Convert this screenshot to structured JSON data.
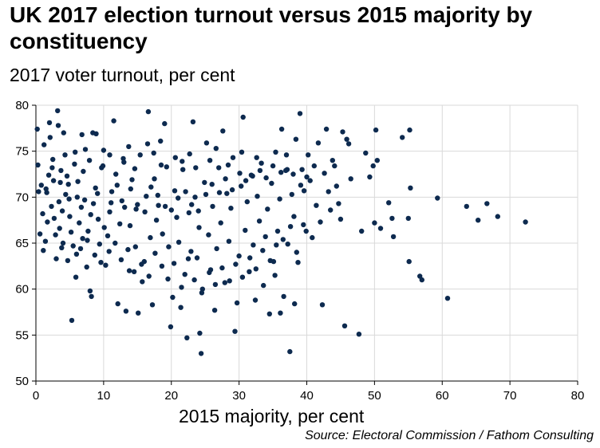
{
  "title": "UK 2017 election turnout versus 2015 majority by constituency",
  "subtitle": "2017 voter turnout, per cent",
  "source": "Source: Electoral Commission / Fathom Consulting",
  "colors": {
    "point": "#0d2a4f",
    "grid": "#d9d9d9",
    "axis": "#000000"
  },
  "chart_data": {
    "type": "scatter",
    "title": "UK 2017 election turnout versus 2015 majority by constituency",
    "xlabel": "2015 majority, per cent",
    "ylabel": "2017 voter turnout, per cent",
    "xlim": [
      0,
      80
    ],
    "ylim": [
      50,
      80
    ],
    "xticks": [
      0,
      10,
      20,
      30,
      40,
      50,
      60,
      70,
      80
    ],
    "yticks": [
      50,
      55,
      60,
      65,
      70,
      75,
      80
    ],
    "grid": true,
    "series": [
      {
        "points": [
          [
            0.2,
            77.4
          ],
          [
            0.3,
            73.5
          ],
          [
            0.8,
            71.3
          ],
          [
            1.2,
            75.7
          ],
          [
            1.0,
            68.2
          ],
          [
            1.6,
            70.5
          ],
          [
            2.1,
            76.5
          ],
          [
            2.3,
            69.0
          ],
          [
            2.7,
            67.7
          ],
          [
            3.0,
            63.3
          ],
          [
            0.6,
            66.0
          ],
          [
            1.4,
            65.2
          ],
          [
            1.9,
            72.4
          ],
          [
            2.5,
            74.1
          ],
          [
            3.3,
            77.8
          ],
          [
            3.2,
            79.4
          ],
          [
            2.0,
            78.1
          ],
          [
            1.1,
            64.2
          ],
          [
            0.4,
            70.6
          ],
          [
            1.7,
            67.3
          ],
          [
            3.6,
            71.6
          ],
          [
            3.9,
            68.5
          ],
          [
            4.3,
            74.6
          ],
          [
            4.1,
            77.0
          ],
          [
            4.6,
            72.3
          ],
          [
            4.9,
            69.8
          ],
          [
            5.2,
            66.2
          ],
          [
            5.5,
            64.7
          ],
          [
            5.3,
            56.6
          ],
          [
            5.9,
            61.3
          ],
          [
            4.0,
            65.0
          ],
          [
            3.5,
            66.6
          ],
          [
            4.8,
            71.4
          ],
          [
            5.7,
            73.6
          ],
          [
            6.1,
            70.0
          ],
          [
            6.4,
            67.2
          ],
          [
            6.7,
            68.9
          ],
          [
            7.0,
            72.8
          ],
          [
            7.3,
            75.2
          ],
          [
            7.7,
            66.3
          ],
          [
            6.0,
            63.8
          ],
          [
            6.9,
            65.5
          ],
          [
            7.5,
            62.4
          ],
          [
            8.0,
            59.8
          ],
          [
            8.2,
            59.2
          ],
          [
            8.5,
            69.3
          ],
          [
            8.8,
            71.0
          ],
          [
            9.2,
            67.6
          ],
          [
            9.4,
            64.9
          ],
          [
            8.4,
            77.0
          ],
          [
            9.7,
            73.2
          ],
          [
            10.0,
            75.1
          ],
          [
            10.3,
            62.6
          ],
          [
            10.6,
            65.8
          ],
          [
            10.9,
            68.4
          ],
          [
            11.2,
            70.6
          ],
          [
            11.5,
            78.3
          ],
          [
            11.8,
            72.5
          ],
          [
            12.1,
            58.4
          ],
          [
            12.4,
            67.1
          ],
          [
            12.7,
            69.6
          ],
          [
            13.0,
            73.8
          ],
          [
            13.3,
            57.6
          ],
          [
            13.6,
            64.3
          ],
          [
            13.9,
            66.9
          ],
          [
            14.2,
            71.9
          ],
          [
            14.5,
            61.9
          ],
          [
            14.8,
            68.7
          ],
          [
            15.1,
            57.4
          ],
          [
            15.4,
            74.6
          ],
          [
            15.7,
            60.8
          ],
          [
            16.0,
            63.0
          ],
          [
            16.3,
            70.1
          ],
          [
            16.6,
            79.3
          ],
          [
            16.9,
            65.6
          ],
          [
            17.2,
            58.3
          ],
          [
            17.5,
            72.0
          ],
          [
            17.8,
            67.5
          ],
          [
            18.1,
            69.1
          ],
          [
            18.4,
            76.1
          ],
          [
            18.7,
            66.0
          ],
          [
            19.0,
            78.0
          ],
          [
            19.3,
            73.3
          ],
          [
            19.6,
            64.6
          ],
          [
            19.9,
            55.9
          ],
          [
            20.2,
            59.1
          ],
          [
            20.5,
            70.7
          ],
          [
            20.8,
            67.8
          ],
          [
            21.1,
            65.1
          ],
          [
            21.4,
            58.0
          ],
          [
            21.7,
            73.0
          ],
          [
            22.0,
            61.6
          ],
          [
            22.3,
            54.7
          ],
          [
            22.6,
            68.3
          ],
          [
            22.9,
            64.1
          ],
          [
            23.2,
            78.2
          ],
          [
            23.5,
            70.0
          ],
          [
            23.8,
            63.4
          ],
          [
            24.1,
            66.7
          ],
          [
            24.4,
            53.0
          ],
          [
            24.2,
            55.2
          ],
          [
            24.6,
            60.0
          ],
          [
            24.9,
            71.6
          ],
          [
            25.2,
            75.9
          ],
          [
            25.5,
            65.9
          ],
          [
            25.8,
            62.1
          ],
          [
            26.1,
            69.0
          ],
          [
            26.4,
            57.7
          ],
          [
            26.7,
            64.4
          ],
          [
            27.0,
            73.2
          ],
          [
            27.3,
            67.2
          ],
          [
            27.6,
            77.2
          ],
          [
            27.9,
            60.7
          ],
          [
            28.2,
            70.4
          ],
          [
            28.5,
            65.2
          ],
          [
            28.8,
            68.8
          ],
          [
            29.1,
            74.3
          ],
          [
            29.4,
            55.4
          ],
          [
            29.7,
            58.5
          ],
          [
            30.0,
            63.6
          ],
          [
            30.3,
            71.2
          ],
          [
            30.6,
            78.7
          ],
          [
            30.9,
            66.4
          ],
          [
            31.2,
            69.5
          ],
          [
            31.5,
            61.9
          ],
          [
            31.8,
            72.4
          ],
          [
            32.1,
            64.8
          ],
          [
            32.4,
            58.8
          ],
          [
            32.7,
            70.1
          ],
          [
            33.0,
            67.4
          ],
          [
            33.3,
            73.7
          ],
          [
            33.6,
            60.4
          ],
          [
            33.9,
            65.7
          ],
          [
            34.2,
            68.7
          ],
          [
            34.5,
            57.3
          ],
          [
            34.8,
            71.5
          ],
          [
            35.1,
            63.0
          ],
          [
            35.4,
            74.9
          ],
          [
            35.7,
            66.3
          ],
          [
            36.0,
            69.8
          ],
          [
            36.3,
            77.4
          ],
          [
            36.6,
            59.2
          ],
          [
            36.9,
            72.9
          ],
          [
            37.2,
            64.9
          ],
          [
            37.5,
            53.2
          ],
          [
            37.8,
            70.3
          ],
          [
            38.1,
            67.9
          ],
          [
            38.4,
            76.3
          ],
          [
            38.7,
            62.9
          ],
          [
            39.0,
            79.1
          ],
          [
            38.2,
            58.4
          ],
          [
            37.0,
            74.6
          ],
          [
            36.1,
            57.4
          ],
          [
            35.3,
            61.5
          ],
          [
            39.3,
            73.0
          ],
          [
            39.6,
            70.7
          ],
          [
            39.9,
            66.3
          ],
          [
            40.2,
            74.6
          ],
          [
            40.5,
            71.8
          ],
          [
            40.8,
            65.6
          ],
          [
            41.1,
            73.4
          ],
          [
            41.4,
            69.1
          ],
          [
            41.7,
            75.9
          ],
          [
            42.0,
            67.3
          ],
          [
            42.3,
            58.3
          ],
          [
            42.6,
            72.6
          ],
          [
            42.9,
            77.4
          ],
          [
            43.2,
            70.6
          ],
          [
            43.5,
            68.6
          ],
          [
            43.8,
            74.0
          ],
          [
            44.1,
            73.4
          ],
          [
            44.4,
            71.2
          ],
          [
            44.7,
            69.3
          ],
          [
            45.0,
            67.6
          ],
          [
            45.3,
            77.1
          ],
          [
            45.6,
            56.0
          ],
          [
            45.9,
            76.3
          ],
          [
            46.2,
            75.8
          ],
          [
            46.5,
            72.0
          ],
          [
            47.7,
            55.1
          ],
          [
            48.1,
            66.3
          ],
          [
            48.7,
            74.8
          ],
          [
            49.3,
            72.2
          ],
          [
            49.8,
            73.4
          ],
          [
            50.2,
            77.3
          ],
          [
            50.4,
            74.0
          ],
          [
            50.0,
            67.2
          ],
          [
            50.9,
            66.6
          ],
          [
            52.1,
            69.4
          ],
          [
            52.6,
            67.7
          ],
          [
            52.8,
            65.7
          ],
          [
            54.1,
            76.5
          ],
          [
            55.0,
            67.7
          ],
          [
            55.2,
            77.3
          ],
          [
            55.3,
            71.0
          ],
          [
            55.1,
            63.0
          ],
          [
            56.7,
            61.4
          ],
          [
            57.0,
            61.0
          ],
          [
            59.3,
            69.9
          ],
          [
            60.8,
            59.0
          ],
          [
            63.6,
            69.0
          ],
          [
            65.3,
            67.5
          ],
          [
            66.6,
            69.3
          ],
          [
            68.2,
            67.9
          ],
          [
            72.3,
            67.3
          ],
          [
            1.5,
            70.9
          ],
          [
            2.4,
            73.2
          ],
          [
            3.4,
            69.5
          ],
          [
            4.4,
            70.3
          ],
          [
            5.0,
            67.9
          ],
          [
            6.2,
            71.7
          ],
          [
            7.2,
            69.7
          ],
          [
            8.1,
            68.1
          ],
          [
            9.1,
            70.4
          ],
          [
            10.1,
            66.7
          ],
          [
            11.1,
            69.4
          ],
          [
            12.0,
            71.3
          ],
          [
            13.1,
            68.9
          ],
          [
            14.0,
            70.9
          ],
          [
            15.0,
            69.2
          ],
          [
            16.1,
            68.4
          ],
          [
            17.0,
            71.1
          ],
          [
            18.0,
            70.2
          ],
          [
            19.1,
            69.0
          ],
          [
            20.0,
            68.6
          ],
          [
            21.0,
            69.9
          ],
          [
            22.1,
            70.6
          ],
          [
            23.0,
            69.2
          ],
          [
            24.0,
            68.5
          ],
          [
            25.1,
            70.3
          ],
          [
            26.0,
            71.4
          ],
          [
            27.1,
            70.5
          ],
          [
            28.0,
            72.0
          ],
          [
            29.0,
            70.8
          ],
          [
            30.1,
            72.6
          ],
          [
            31.0,
            71.8
          ],
          [
            32.0,
            72.3
          ],
          [
            33.1,
            72.9
          ],
          [
            34.0,
            72.1
          ],
          [
            35.0,
            73.4
          ],
          [
            36.2,
            72.7
          ],
          [
            37.1,
            73.0
          ],
          [
            38.0,
            72.5
          ],
          [
            39.1,
            71.3
          ],
          [
            40.0,
            72.2
          ],
          [
            2.9,
            65.9
          ],
          [
            3.8,
            64.5
          ],
          [
            4.7,
            63.1
          ],
          [
            6.6,
            64.4
          ],
          [
            7.6,
            65.3
          ],
          [
            8.7,
            63.7
          ],
          [
            9.6,
            62.9
          ],
          [
            10.8,
            64.1
          ],
          [
            11.7,
            65.0
          ],
          [
            12.6,
            63.2
          ],
          [
            13.8,
            62.0
          ],
          [
            14.7,
            64.6
          ],
          [
            15.6,
            62.7
          ],
          [
            16.7,
            61.4
          ],
          [
            17.6,
            63.9
          ],
          [
            18.6,
            62.5
          ],
          [
            19.5,
            61.1
          ],
          [
            20.4,
            62.8
          ],
          [
            21.5,
            60.2
          ],
          [
            22.5,
            63.3
          ],
          [
            23.4,
            61.0
          ],
          [
            24.5,
            59.6
          ],
          [
            25.6,
            61.8
          ],
          [
            26.5,
            60.5
          ],
          [
            27.5,
            62.3
          ],
          [
            28.6,
            60.9
          ],
          [
            29.5,
            62.7
          ],
          [
            30.5,
            61.3
          ],
          [
            31.6,
            63.4
          ],
          [
            32.5,
            62.2
          ],
          [
            33.5,
            64.2
          ],
          [
            34.6,
            63.1
          ],
          [
            35.5,
            64.8
          ],
          [
            36.5,
            65.4
          ],
          [
            37.6,
            66.8
          ],
          [
            38.5,
            64.0
          ],
          [
            39.5,
            67.0
          ],
          [
            2.6,
            71.8
          ],
          [
            3.7,
            72.9
          ],
          [
            5.8,
            74.9
          ],
          [
            6.8,
            76.8
          ],
          [
            7.9,
            74.0
          ],
          [
            8.9,
            76.9
          ],
          [
            9.9,
            73.4
          ],
          [
            10.9,
            74.6
          ],
          [
            12.9,
            74.2
          ],
          [
            13.7,
            75.5
          ],
          [
            14.6,
            73.1
          ],
          [
            16.5,
            75.8
          ],
          [
            17.4,
            74.8
          ],
          [
            18.5,
            73.5
          ],
          [
            20.6,
            74.3
          ],
          [
            21.6,
            73.9
          ],
          [
            22.7,
            74.7
          ],
          [
            23.6,
            73.2
          ],
          [
            25.7,
            74.0
          ],
          [
            26.6,
            75.3
          ],
          [
            28.4,
            73.5
          ],
          [
            30.4,
            74.9
          ],
          [
            32.6,
            74.3
          ]
        ]
      }
    ]
  }
}
